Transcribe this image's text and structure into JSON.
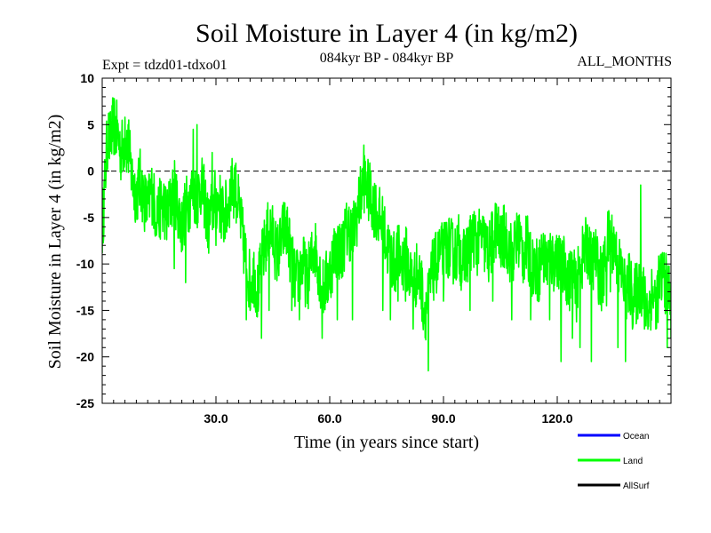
{
  "chart_data": {
    "type": "line",
    "title": "Soil Moisture in Layer 4 (in kg/m2)",
    "subtitle_left": "Expt = tdzd01-tdxo01",
    "subtitle_center": "084kyr BP - 084kyr BP",
    "subtitle_right": "ALL_MONTHS",
    "xlabel": "Time (in years since start)",
    "ylabel": "Soil Moisture in Layer 4 (in kg/m2)",
    "xlim": [
      0,
      150
    ],
    "ylim": [
      -25,
      10
    ],
    "x_ticks": [
      30,
      60,
      90,
      120
    ],
    "x_tick_labels": [
      "30.0",
      "60.0",
      "90.0",
      "120.0"
    ],
    "y_ticks": [
      10,
      5,
      0,
      -5,
      -10,
      -15,
      -20,
      -25
    ],
    "y_tick_labels": [
      "10",
      "5",
      "0",
      "-5",
      "-10",
      "-15",
      "-20",
      "-25"
    ],
    "reference_line": 0,
    "colors": {
      "ocean": "#0000ff",
      "land": "#00ff00",
      "allsurf": "#000000",
      "reference": "#000000"
    },
    "legend": [
      "Ocean",
      "Land",
      "AllSurf"
    ],
    "legend_position": "bottom-right",
    "series": [
      {
        "name": "Land",
        "monthly": true,
        "anchors": [
          [
            0,
            -6
          ],
          [
            0.5,
            -3
          ],
          [
            1,
            1
          ],
          [
            1.5,
            4
          ],
          [
            2,
            3
          ],
          [
            3,
            5
          ],
          [
            4,
            4
          ],
          [
            5,
            2
          ],
          [
            6,
            3.5
          ],
          [
            7,
            2
          ],
          [
            8,
            -1
          ],
          [
            9,
            -2.5
          ],
          [
            10,
            -1
          ],
          [
            11,
            -3
          ],
          [
            12,
            -4
          ],
          [
            13,
            -2
          ],
          [
            14,
            -4
          ],
          [
            15,
            -4.5
          ],
          [
            16,
            -3
          ],
          [
            17,
            -5
          ],
          [
            18,
            -3.5
          ],
          [
            19,
            -2
          ],
          [
            20,
            -4
          ],
          [
            21,
            -6
          ],
          [
            22,
            -4
          ],
          [
            23,
            -3
          ],
          [
            24,
            -2
          ],
          [
            25,
            -3
          ],
          [
            26,
            -1.5
          ],
          [
            27,
            -3
          ],
          [
            28,
            -6
          ],
          [
            29,
            -4
          ],
          [
            30,
            -3
          ],
          [
            31,
            -3.5
          ],
          [
            32,
            -5
          ],
          [
            33,
            -4
          ],
          [
            34,
            -2
          ],
          [
            35,
            -1.5
          ],
          [
            36,
            -4
          ],
          [
            37,
            -7
          ],
          [
            38,
            -10
          ],
          [
            39,
            -12
          ],
          [
            40,
            -11
          ],
          [
            41,
            -13
          ],
          [
            42,
            -10
          ],
          [
            43,
            -8
          ],
          [
            44,
            -6
          ],
          [
            45,
            -7
          ],
          [
            46,
            -9
          ],
          [
            47,
            -8
          ],
          [
            48,
            -6
          ],
          [
            49,
            -7
          ],
          [
            50,
            -10
          ],
          [
            51,
            -12
          ],
          [
            52,
            -11
          ],
          [
            53,
            -10
          ],
          [
            54,
            -12
          ],
          [
            55,
            -10
          ],
          [
            56,
            -8
          ],
          [
            57,
            -10
          ],
          [
            58,
            -13
          ],
          [
            59,
            -12
          ],
          [
            60,
            -11
          ],
          [
            61,
            -9
          ],
          [
            62,
            -8
          ],
          [
            63,
            -9
          ],
          [
            64,
            -7
          ],
          [
            65,
            -6
          ],
          [
            66,
            -7
          ],
          [
            67,
            -5
          ],
          [
            68,
            -3
          ],
          [
            69,
            -1
          ],
          [
            70,
            -2
          ],
          [
            71,
            -3
          ],
          [
            72,
            -4
          ],
          [
            73,
            -5
          ],
          [
            74,
            -6
          ],
          [
            75,
            -8
          ],
          [
            76,
            -9
          ],
          [
            77,
            -10
          ],
          [
            78,
            -9
          ],
          [
            79,
            -10
          ],
          [
            80,
            -9
          ],
          [
            81,
            -11
          ],
          [
            82,
            -12
          ],
          [
            83,
            -11
          ],
          [
            84,
            -12
          ],
          [
            85,
            -15
          ],
          [
            86,
            -14
          ],
          [
            87,
            -11
          ],
          [
            88,
            -10
          ],
          [
            89,
            -9
          ],
          [
            90,
            -9
          ],
          [
            91,
            -8
          ],
          [
            92,
            -8.5
          ],
          [
            93,
            -9
          ],
          [
            94,
            -8
          ],
          [
            95,
            -10
          ],
          [
            96,
            -9
          ],
          [
            97,
            -8
          ],
          [
            98,
            -7
          ],
          [
            99,
            -8
          ],
          [
            100,
            -7
          ],
          [
            101,
            -8
          ],
          [
            102,
            -9
          ],
          [
            103,
            -7
          ],
          [
            104,
            -6
          ],
          [
            105,
            -8
          ],
          [
            106,
            -7
          ],
          [
            107,
            -8
          ],
          [
            108,
            -9
          ],
          [
            109,
            -8
          ],
          [
            110,
            -7
          ],
          [
            111,
            -9
          ],
          [
            112,
            -8
          ],
          [
            113,
            -10
          ],
          [
            114,
            -10
          ],
          [
            115,
            -11
          ],
          [
            116,
            -9
          ],
          [
            117,
            -10
          ],
          [
            118,
            -9
          ],
          [
            119,
            -10
          ],
          [
            120,
            -9
          ],
          [
            121,
            -11
          ],
          [
            122,
            -10
          ],
          [
            123,
            -12
          ],
          [
            124,
            -11
          ],
          [
            125,
            -13
          ],
          [
            126,
            -10
          ],
          [
            127,
            -9
          ],
          [
            128,
            -8
          ],
          [
            129,
            -10
          ],
          [
            130,
            -9
          ],
          [
            131,
            -11
          ],
          [
            132,
            -12
          ],
          [
            133,
            -8
          ],
          [
            134,
            -7
          ],
          [
            135,
            -8
          ],
          [
            136,
            -10
          ],
          [
            137,
            -11
          ],
          [
            138,
            -13
          ],
          [
            139,
            -12
          ],
          [
            140,
            -14
          ],
          [
            141,
            -13
          ],
          [
            142,
            -12
          ],
          [
            143,
            -14
          ],
          [
            144,
            -15
          ],
          [
            145,
            -13
          ],
          [
            146,
            -14
          ],
          [
            147,
            -12
          ],
          [
            148,
            -11
          ],
          [
            149,
            -13
          ],
          [
            150,
            -12
          ]
        ],
        "extremes": [
          [
            2,
            6
          ],
          [
            3,
            6.3
          ],
          [
            4,
            5.5
          ],
          [
            6,
            5.8
          ],
          [
            7,
            5.5
          ],
          [
            14,
            -7
          ],
          [
            16,
            -6.5
          ],
          [
            19,
            -10.5
          ],
          [
            22,
            -12
          ],
          [
            24,
            4.5
          ],
          [
            25,
            5
          ],
          [
            29,
            2
          ],
          [
            30,
            -8
          ],
          [
            34,
            0.5
          ],
          [
            35,
            0.6
          ],
          [
            38,
            -16
          ],
          [
            39,
            -15
          ],
          [
            42,
            -18
          ],
          [
            44,
            -15
          ],
          [
            48,
            -7
          ],
          [
            50,
            -15
          ],
          [
            52,
            -16
          ],
          [
            58,
            -18
          ],
          [
            62,
            -16
          ],
          [
            66,
            -16
          ],
          [
            69,
            2.8
          ],
          [
            74,
            -15
          ],
          [
            76,
            -16
          ],
          [
            78,
            -14
          ],
          [
            80,
            -14
          ],
          [
            82,
            -17
          ],
          [
            86,
            -21.5
          ],
          [
            90,
            -14
          ],
          [
            97,
            -15
          ],
          [
            103,
            -14
          ],
          [
            108,
            -16
          ],
          [
            113,
            -16
          ],
          [
            118,
            -16
          ],
          [
            121,
            -20.5
          ],
          [
            124,
            -18
          ],
          [
            126,
            -19
          ],
          [
            129,
            -20.5
          ],
          [
            133,
            -14.5
          ],
          [
            134,
            -13
          ],
          [
            136,
            -19
          ],
          [
            138,
            -20.5
          ],
          [
            142,
            -1.5
          ],
          [
            143,
            -17
          ],
          [
            146,
            -17
          ],
          [
            149,
            -19
          ],
          [
            150,
            -18
          ]
        ]
      }
    ]
  }
}
